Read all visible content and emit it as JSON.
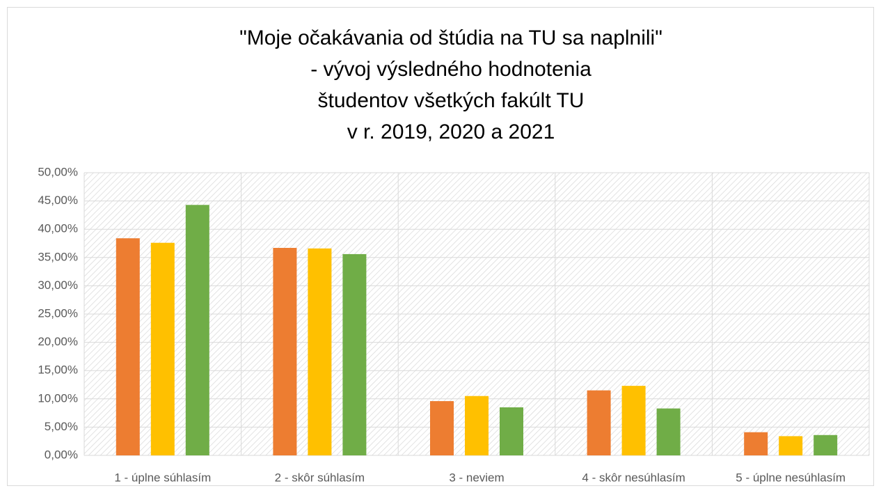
{
  "chart_data": {
    "type": "bar",
    "title": [
      "\"Moje očakávania od štúdia na TU sa naplnili\"",
      "- vývoj výsledného hodnotenia",
      "študentov všetkých fakúlt TU",
      "v r. 2019, 2020 a 2021"
    ],
    "categories": [
      "1 - úplne súhlasím",
      "2 - skôr súhlasím",
      "3 - neviem",
      "4 - skôr nesúhlasím",
      "5 - úplne nesúhlasím"
    ],
    "series": [
      {
        "color": "#ed7d31",
        "values": [
          38.4,
          36.7,
          9.6,
          11.5,
          4.1
        ]
      },
      {
        "color": "#ffc000",
        "values": [
          37.6,
          36.6,
          10.5,
          12.3,
          3.4
        ]
      },
      {
        "color": "#70ad47",
        "values": [
          44.3,
          35.6,
          8.5,
          8.3,
          3.6
        ]
      }
    ],
    "ylim": [
      0,
      50
    ],
    "yticks": [
      {
        "value": 0,
        "label": "0,00%"
      },
      {
        "value": 5,
        "label": "5,00%"
      },
      {
        "value": 10,
        "label": "10,00%"
      },
      {
        "value": 15,
        "label": "15,00%"
      },
      {
        "value": 20,
        "label": "20,00%"
      },
      {
        "value": 25,
        "label": "25,00%"
      },
      {
        "value": 30,
        "label": "30,00%"
      },
      {
        "value": 35,
        "label": "35,00%"
      },
      {
        "value": 40,
        "label": "40,00%"
      },
      {
        "value": 45,
        "label": "45,00%"
      },
      {
        "value": 50,
        "label": "50,00%"
      }
    ],
    "grid": true
  }
}
